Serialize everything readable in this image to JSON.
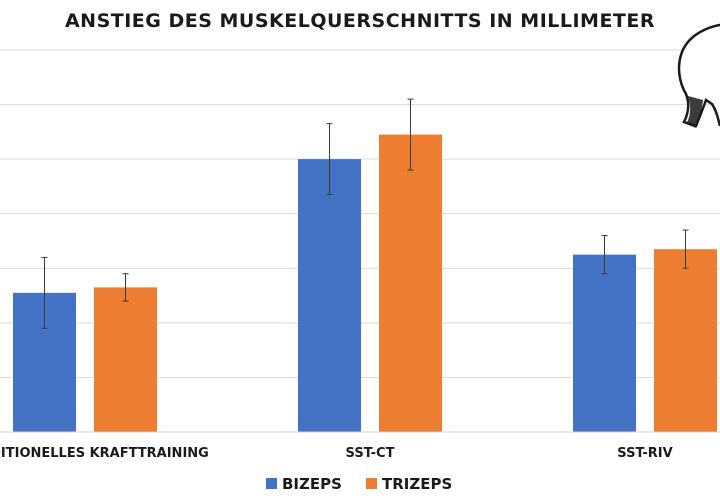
{
  "chart_data": {
    "type": "bar",
    "title": "ANSTIEG DES MUSKELQUERSCHNITTS IN MILLIMETER",
    "xlabel": "",
    "ylabel": "",
    "categories": [
      "TRADITIONELLES KRAFTTRAINING",
      "SST-CT",
      "SST-RIV"
    ],
    "series": [
      {
        "name": "BIZEPS",
        "color": "#4472C4",
        "values": [
          2.55,
          5.0,
          3.25
        ],
        "errors": [
          0.65,
          0.65,
          0.35
        ]
      },
      {
        "name": "TRIZEPS",
        "color": "#ED7D31",
        "values": [
          2.65,
          5.45,
          3.35
        ],
        "errors": [
          0.25,
          0.65,
          0.35
        ]
      }
    ],
    "ylim": [
      0,
      7
    ],
    "grid": true,
    "legend_position": "bottom",
    "decoration_icon": "elephant-outline-icon"
  }
}
